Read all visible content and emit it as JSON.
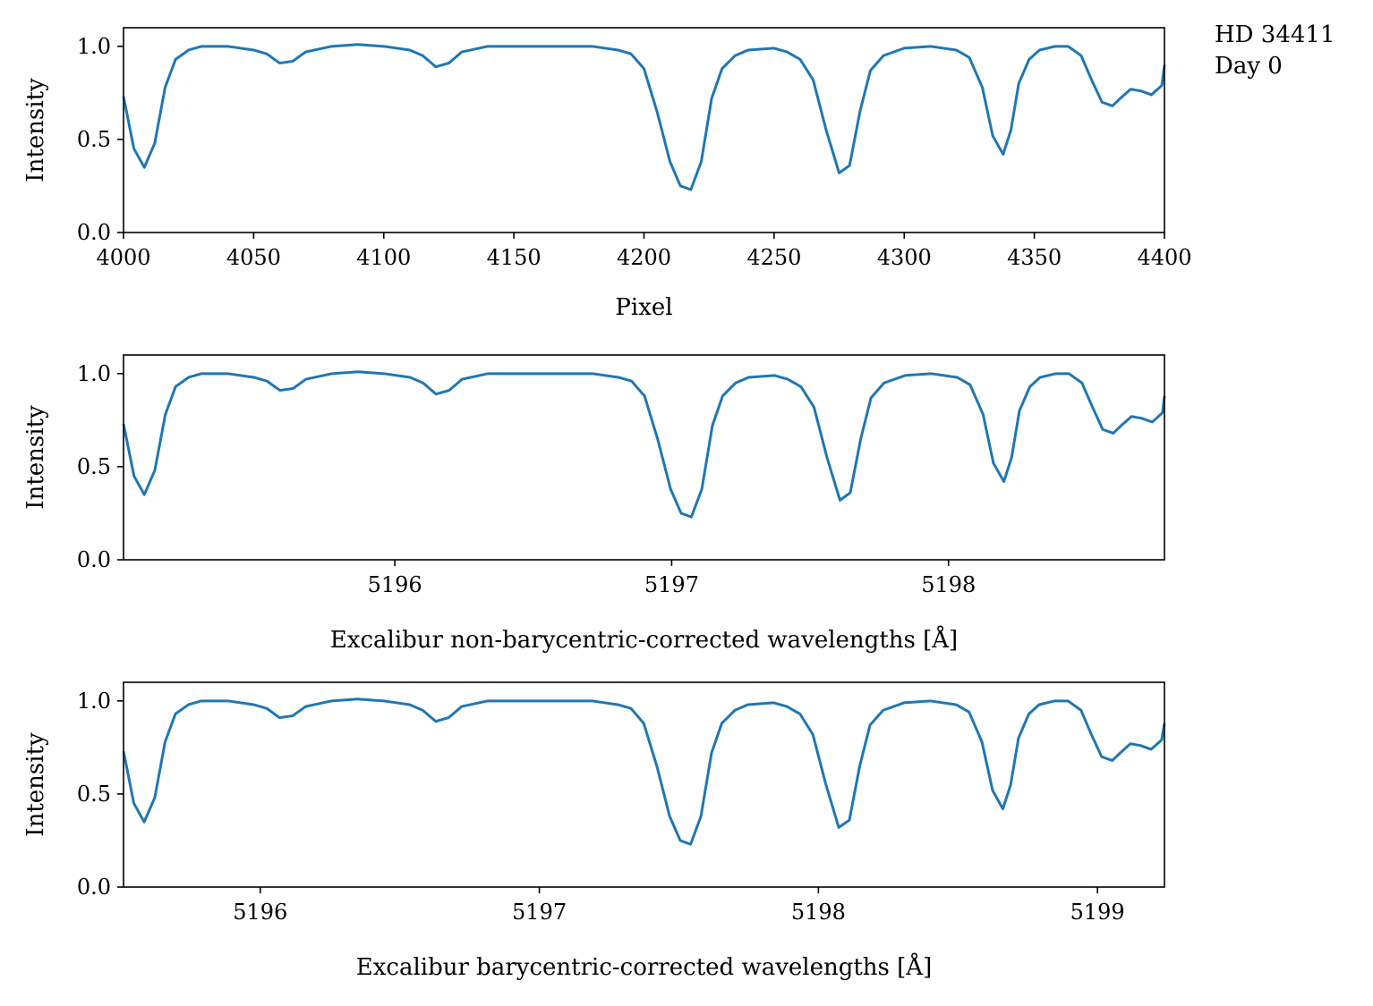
{
  "annotation": {
    "line1": "HD 34411",
    "line2": "Day 0"
  },
  "colors": {
    "series": "#1f77b4",
    "axes": "#000000",
    "background": "#ffffff"
  },
  "chart_data": [
    {
      "type": "line",
      "xlabel": "Pixel",
      "ylabel": "Intensity",
      "xlim": [
        4000,
        4400
      ],
      "ylim": [
        0.0,
        1.1
      ],
      "xticks": [
        {
          "value": 4000,
          "label": "4000"
        },
        {
          "value": 4050,
          "label": "4050"
        },
        {
          "value": 4100,
          "label": "4100"
        },
        {
          "value": 4150,
          "label": "4150"
        },
        {
          "value": 4200,
          "label": "4200"
        },
        {
          "value": 4250,
          "label": "4250"
        },
        {
          "value": 4300,
          "label": "4300"
        },
        {
          "value": 4350,
          "label": "4350"
        },
        {
          "value": 4400,
          "label": "4400"
        }
      ],
      "yticks": [
        {
          "value": 0.0,
          "label": "0.0"
        },
        {
          "value": 0.5,
          "label": "0.5"
        },
        {
          "value": 1.0,
          "label": "1.0"
        }
      ],
      "grid": false,
      "series": [
        {
          "x": [
            4000,
            4004,
            4008,
            4012,
            4016,
            4020,
            4025,
            4030,
            4040,
            4050,
            4055,
            4060,
            4065,
            4070,
            4080,
            4090,
            4100,
            4110,
            4115,
            4120,
            4125,
            4130,
            4140,
            4150,
            4160,
            4170,
            4180,
            4190,
            4195,
            4200,
            4205,
            4210,
            4214,
            4218,
            4222,
            4226,
            4230,
            4235,
            4240,
            4250,
            4255,
            4260,
            4265,
            4270,
            4275,
            4279,
            4283,
            4287,
            4292,
            4300,
            4310,
            4320,
            4325,
            4330,
            4334,
            4338,
            4341,
            4344,
            4348,
            4352,
            4358,
            4363,
            4368,
            4372,
            4376,
            4380,
            4383,
            4387,
            4391,
            4395,
            4399,
            4400
          ],
          "y": [
            0.73,
            0.45,
            0.35,
            0.48,
            0.78,
            0.93,
            0.98,
            1.0,
            1.0,
            0.98,
            0.96,
            0.91,
            0.92,
            0.97,
            1.0,
            1.01,
            1.0,
            0.98,
            0.95,
            0.89,
            0.91,
            0.97,
            1.0,
            1.0,
            1.0,
            1.0,
            1.0,
            0.98,
            0.96,
            0.88,
            0.65,
            0.38,
            0.25,
            0.23,
            0.38,
            0.72,
            0.88,
            0.95,
            0.98,
            0.99,
            0.97,
            0.93,
            0.82,
            0.55,
            0.32,
            0.36,
            0.65,
            0.87,
            0.95,
            0.99,
            1.0,
            0.98,
            0.94,
            0.78,
            0.52,
            0.42,
            0.55,
            0.8,
            0.93,
            0.98,
            1.0,
            1.0,
            0.95,
            0.82,
            0.7,
            0.68,
            0.72,
            0.77,
            0.76,
            0.74,
            0.79,
            0.9
          ]
        }
      ]
    },
    {
      "type": "line",
      "xlabel": "Excalibur non-barycentric-corrected wavelengths [Å]",
      "ylabel": "Intensity",
      "xlim": [
        5195.02,
        5198.78
      ],
      "ylim": [
        0.0,
        1.1
      ],
      "xticks": [
        {
          "value": 5196,
          "label": "5196"
        },
        {
          "value": 5197,
          "label": "5197"
        },
        {
          "value": 5198,
          "label": "5198"
        }
      ],
      "yticks": [
        {
          "value": 0.0,
          "label": "0.0"
        },
        {
          "value": 0.5,
          "label": "0.5"
        },
        {
          "value": 1.0,
          "label": "1.0"
        }
      ],
      "grid": false,
      "series": [
        {
          "x": [
            5195.02,
            5195.058,
            5195.095,
            5195.133,
            5195.171,
            5195.208,
            5195.255,
            5195.302,
            5195.396,
            5195.491,
            5195.538,
            5195.585,
            5195.632,
            5195.679,
            5195.773,
            5195.867,
            5195.961,
            5196.055,
            5196.102,
            5196.149,
            5196.196,
            5196.243,
            5196.337,
            5196.431,
            5196.526,
            5196.62,
            5196.714,
            5196.808,
            5196.855,
            5196.902,
            5196.949,
            5196.996,
            5197.034,
            5197.071,
            5197.109,
            5197.147,
            5197.184,
            5197.231,
            5197.278,
            5197.372,
            5197.419,
            5197.467,
            5197.514,
            5197.561,
            5197.608,
            5197.645,
            5197.683,
            5197.72,
            5197.767,
            5197.843,
            5197.937,
            5198.031,
            5198.078,
            5198.125,
            5198.162,
            5198.2,
            5198.228,
            5198.256,
            5198.294,
            5198.331,
            5198.388,
            5198.435,
            5198.482,
            5198.52,
            5198.557,
            5198.595,
            5198.623,
            5198.661,
            5198.698,
            5198.736,
            5198.773,
            5198.78
          ],
          "y": [
            0.73,
            0.45,
            0.35,
            0.48,
            0.78,
            0.93,
            0.98,
            1.0,
            1.0,
            0.98,
            0.96,
            0.91,
            0.92,
            0.97,
            1.0,
            1.01,
            1.0,
            0.98,
            0.95,
            0.89,
            0.91,
            0.97,
            1.0,
            1.0,
            1.0,
            1.0,
            1.0,
            0.98,
            0.96,
            0.88,
            0.65,
            0.38,
            0.25,
            0.23,
            0.38,
            0.72,
            0.88,
            0.95,
            0.98,
            0.99,
            0.97,
            0.93,
            0.82,
            0.55,
            0.32,
            0.36,
            0.65,
            0.87,
            0.95,
            0.99,
            1.0,
            0.98,
            0.94,
            0.78,
            0.52,
            0.42,
            0.55,
            0.8,
            0.93,
            0.98,
            1.0,
            1.0,
            0.95,
            0.82,
            0.7,
            0.68,
            0.72,
            0.77,
            0.76,
            0.74,
            0.79,
            0.88
          ]
        }
      ]
    },
    {
      "type": "line",
      "xlabel": "Excalibur barycentric-corrected wavelengths [Å]",
      "ylabel": "Intensity",
      "xlim": [
        5195.51,
        5199.24
      ],
      "ylim": [
        0.0,
        1.1
      ],
      "xticks": [
        {
          "value": 5196,
          "label": "5196"
        },
        {
          "value": 5197,
          "label": "5197"
        },
        {
          "value": 5198,
          "label": "5198"
        },
        {
          "value": 5199,
          "label": "5199"
        }
      ],
      "yticks": [
        {
          "value": 0.0,
          "label": "0.0"
        },
        {
          "value": 0.5,
          "label": "0.5"
        },
        {
          "value": 1.0,
          "label": "1.0"
        }
      ],
      "grid": false,
      "series": [
        {
          "x": [
            5195.51,
            5195.547,
            5195.584,
            5195.622,
            5195.659,
            5195.696,
            5195.743,
            5195.789,
            5195.883,
            5195.976,
            5196.023,
            5196.069,
            5196.116,
            5196.163,
            5196.256,
            5196.349,
            5196.442,
            5196.535,
            5196.582,
            5196.629,
            5196.675,
            5196.722,
            5196.815,
            5196.908,
            5197.001,
            5197.095,
            5197.188,
            5197.281,
            5197.328,
            5197.374,
            5197.421,
            5197.467,
            5197.505,
            5197.542,
            5197.579,
            5197.617,
            5197.654,
            5197.701,
            5197.747,
            5197.84,
            5197.887,
            5197.934,
            5197.98,
            5198.027,
            5198.073,
            5198.111,
            5198.148,
            5198.185,
            5198.232,
            5198.307,
            5198.4,
            5198.493,
            5198.54,
            5198.586,
            5198.624,
            5198.661,
            5198.689,
            5198.717,
            5198.754,
            5198.791,
            5198.847,
            5198.894,
            5198.941,
            5198.978,
            5199.015,
            5199.053,
            5199.081,
            5199.118,
            5199.155,
            5199.192,
            5199.23,
            5199.24
          ],
          "y": [
            0.73,
            0.45,
            0.35,
            0.48,
            0.78,
            0.93,
            0.98,
            1.0,
            1.0,
            0.98,
            0.96,
            0.91,
            0.92,
            0.97,
            1.0,
            1.01,
            1.0,
            0.98,
            0.95,
            0.89,
            0.91,
            0.97,
            1.0,
            1.0,
            1.0,
            1.0,
            1.0,
            0.98,
            0.96,
            0.88,
            0.65,
            0.38,
            0.25,
            0.23,
            0.38,
            0.72,
            0.88,
            0.95,
            0.98,
            0.99,
            0.97,
            0.93,
            0.82,
            0.55,
            0.32,
            0.36,
            0.65,
            0.87,
            0.95,
            0.99,
            1.0,
            0.98,
            0.94,
            0.78,
            0.52,
            0.42,
            0.55,
            0.8,
            0.93,
            0.98,
            1.0,
            1.0,
            0.95,
            0.82,
            0.7,
            0.68,
            0.72,
            0.77,
            0.76,
            0.74,
            0.79,
            0.88
          ]
        }
      ]
    }
  ]
}
